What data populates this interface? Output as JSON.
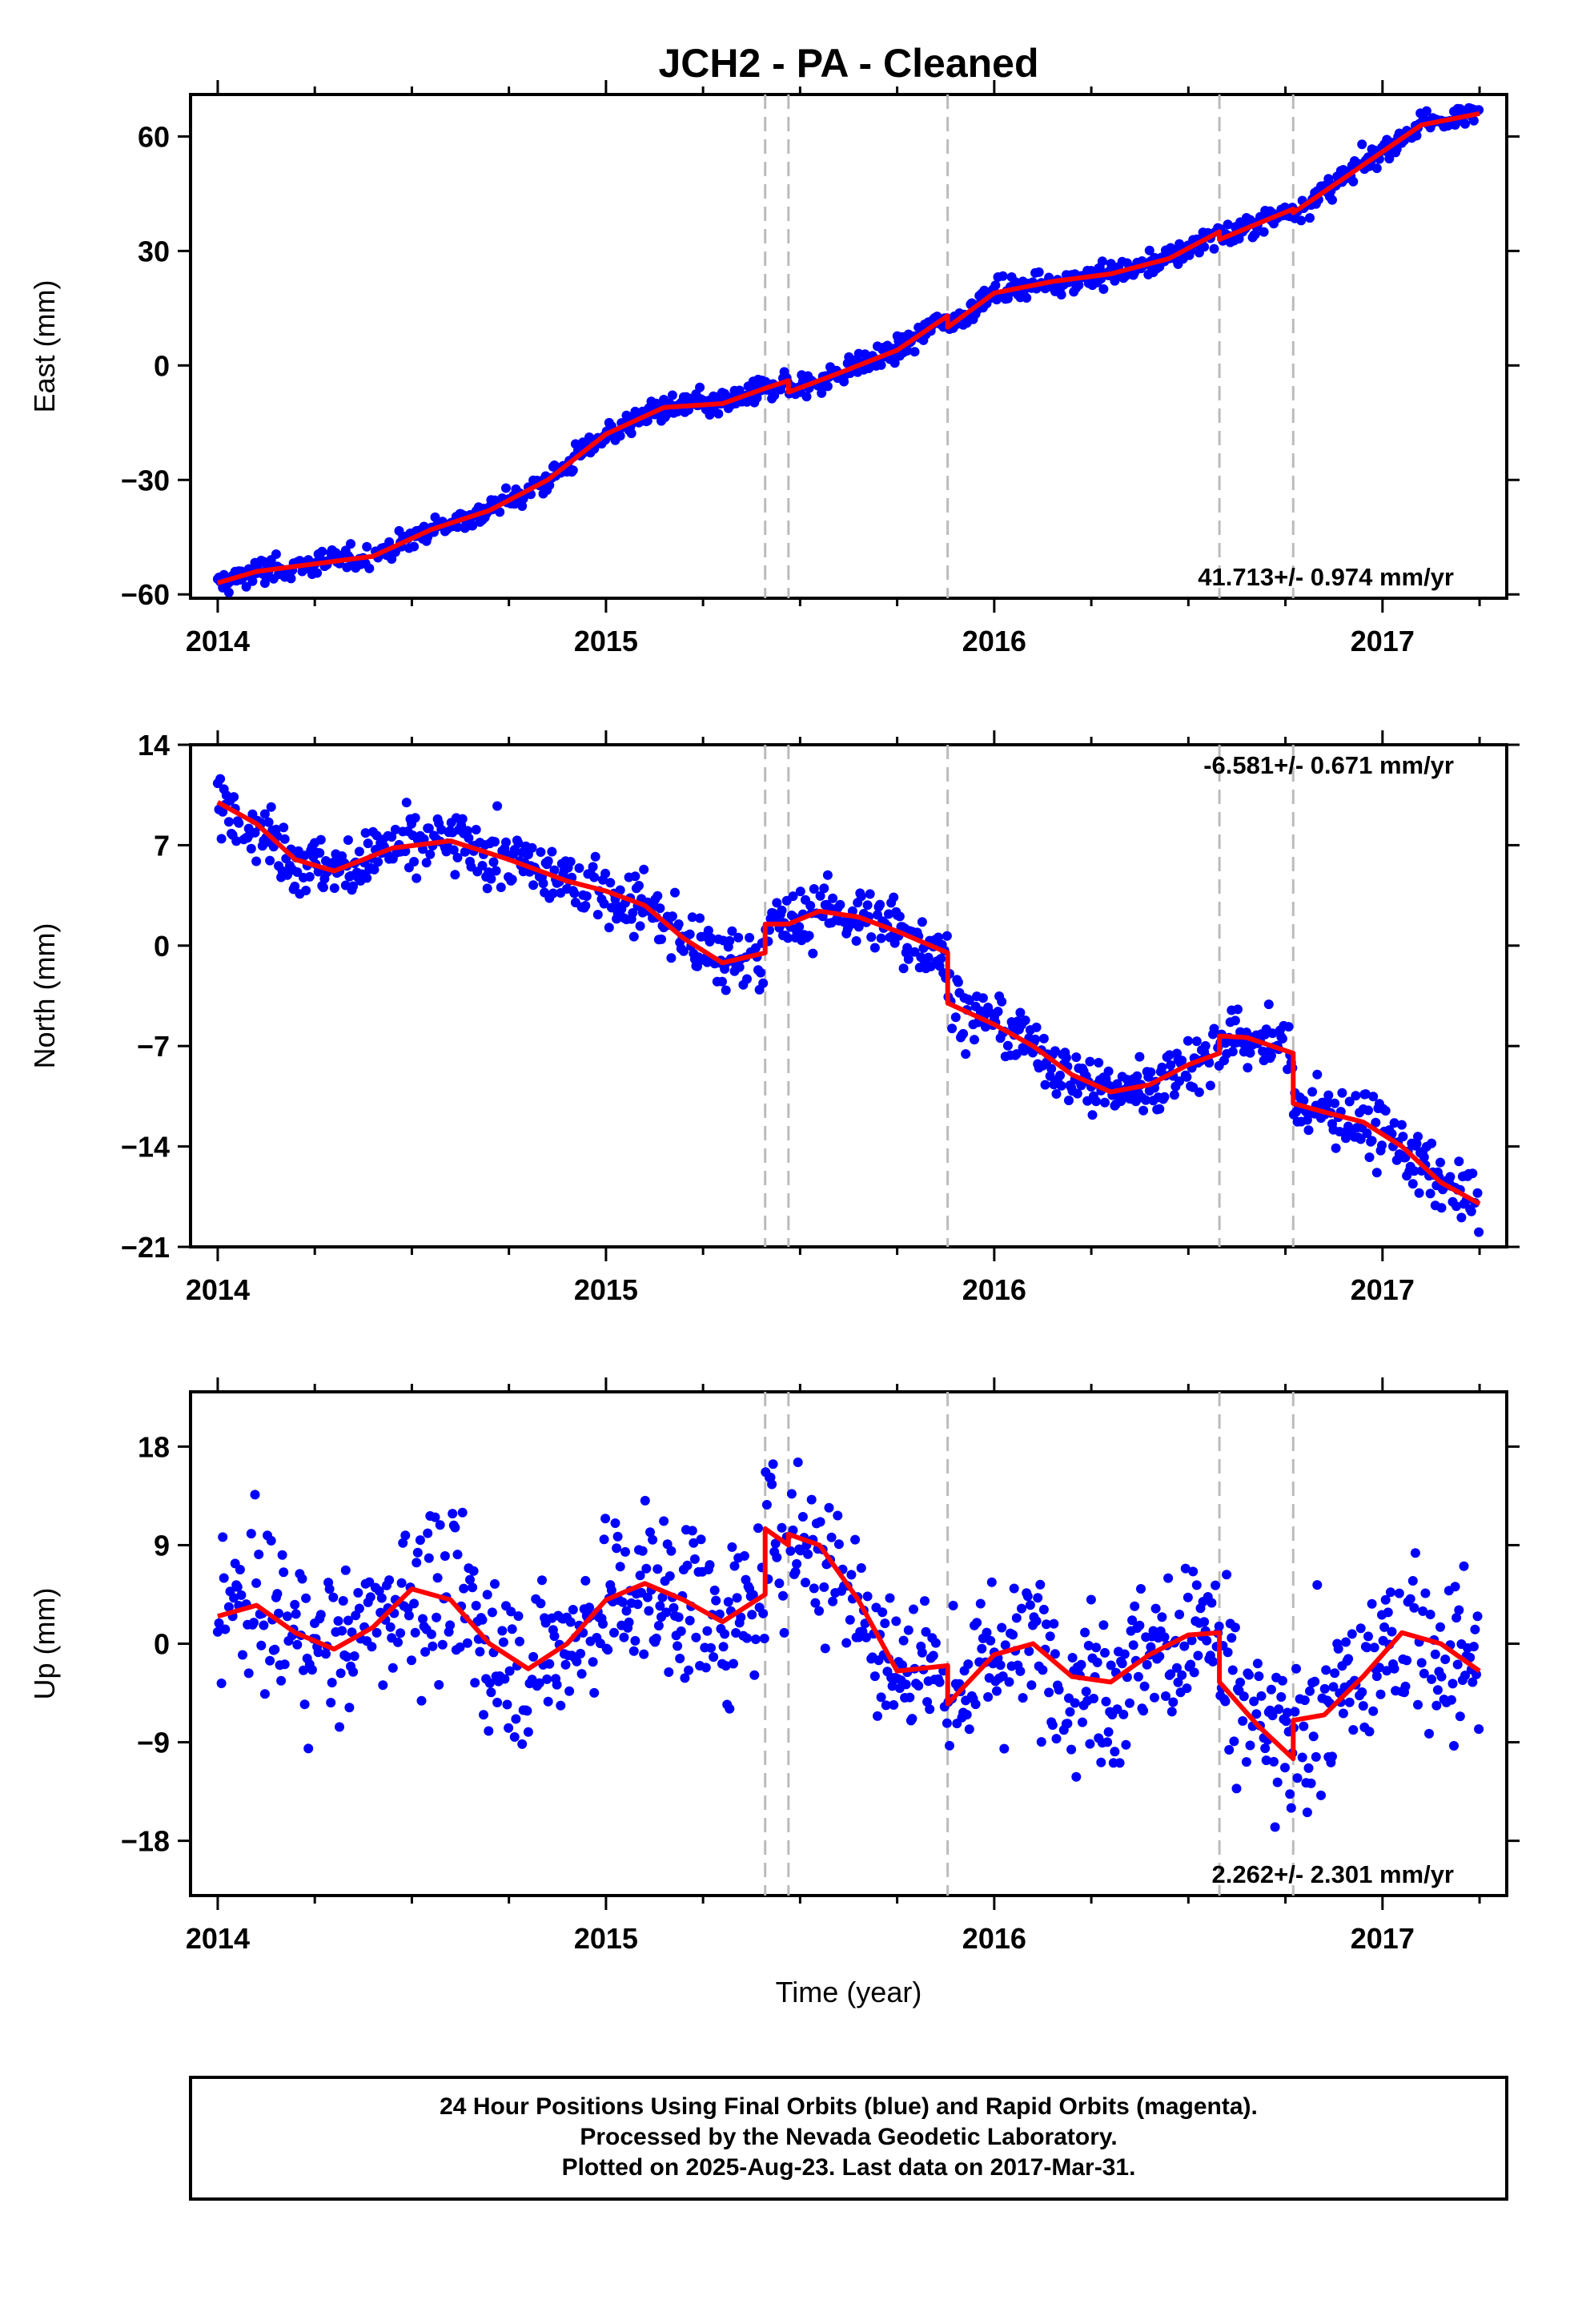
{
  "title": "JCH2  - PA - Cleaned",
  "footer": {
    "lines": [
      "24 Hour Positions Using Final Orbits (blue) and Rapid Orbits (magenta).",
      "Processed by the Nevada Geodetic Laboratory.",
      "Plotted on 2025-Aug-23. Last data on 2017-Mar-31."
    ]
  },
  "colors": {
    "points": "#0000ff",
    "model": "#ff0000",
    "steps": "#bbbbbb"
  },
  "chart_data": [
    {
      "type": "scatter",
      "component": "East",
      "ylabel": "East (mm)",
      "xlabel": "",
      "xlim": [
        2013.93,
        2017.32
      ],
      "ylim": [
        -61,
        71
      ],
      "xticks": [
        "2014",
        "2015",
        "2016",
        "2017"
      ],
      "yticks": [
        -60,
        -30,
        0,
        30,
        60
      ],
      "rate_label": "41.713+/- 0.974 mm/yr",
      "rate_position": "bottom-right",
      "steps": [
        2015.41,
        2015.47,
        2015.88,
        2016.58,
        2016.77
      ],
      "trend": [
        [
          2014.0,
          -57
        ],
        [
          2014.1,
          -54
        ],
        [
          2014.25,
          -52
        ],
        [
          2014.4,
          -50
        ],
        [
          2014.55,
          -43
        ],
        [
          2014.7,
          -38
        ],
        [
          2014.85,
          -30
        ],
        [
          2015.0,
          -18
        ],
        [
          2015.15,
          -11
        ],
        [
          2015.3,
          -10
        ],
        [
          2015.41,
          -6
        ],
        [
          2015.47,
          -4
        ],
        [
          2015.47,
          -7
        ],
        [
          2015.6,
          -2
        ],
        [
          2015.75,
          4
        ],
        [
          2015.88,
          13
        ],
        [
          2015.88,
          10
        ],
        [
          2016.0,
          19
        ],
        [
          2016.15,
          22
        ],
        [
          2016.3,
          24
        ],
        [
          2016.45,
          28
        ],
        [
          2016.58,
          35
        ],
        [
          2016.58,
          33
        ],
        [
          2016.77,
          41
        ],
        [
          2016.77,
          40
        ],
        [
          2016.9,
          49
        ],
        [
          2017.0,
          56
        ],
        [
          2017.1,
          63
        ],
        [
          2017.25,
          66
        ]
      ]
    },
    {
      "type": "scatter",
      "component": "North",
      "ylabel": "North (mm)",
      "xlabel": "",
      "xlim": [
        2013.93,
        2017.32
      ],
      "ylim": [
        -21,
        14
      ],
      "xticks": [
        "2014",
        "2015",
        "2016",
        "2017"
      ],
      "yticks": [
        -21,
        -14,
        -7,
        0,
        7,
        14
      ],
      "rate_label": "-6.581+/- 0.671 mm/yr",
      "rate_position": "top-right",
      "steps": [
        2015.41,
        2015.47,
        2015.88,
        2016.58,
        2016.77
      ],
      "trend": [
        [
          2014.0,
          10
        ],
        [
          2014.1,
          8.5
        ],
        [
          2014.2,
          6
        ],
        [
          2014.3,
          5.2
        ],
        [
          2014.45,
          6.8
        ],
        [
          2014.6,
          7.3
        ],
        [
          2014.75,
          6
        ],
        [
          2014.9,
          4.5
        ],
        [
          2015.0,
          3.8
        ],
        [
          2015.1,
          2.8
        ],
        [
          2015.2,
          0.5
        ],
        [
          2015.3,
          -1.2
        ],
        [
          2015.41,
          -0.5
        ],
        [
          2015.41,
          1.5
        ],
        [
          2015.47,
          1.5
        ],
        [
          2015.55,
          2.4
        ],
        [
          2015.65,
          2.0
        ],
        [
          2015.75,
          1.0
        ],
        [
          2015.88,
          -0.5
        ],
        [
          2015.88,
          -4.0
        ],
        [
          2016.0,
          -5.5
        ],
        [
          2016.1,
          -7
        ],
        [
          2016.2,
          -9
        ],
        [
          2016.3,
          -10.2
        ],
        [
          2016.4,
          -9.7
        ],
        [
          2016.5,
          -8.3
        ],
        [
          2016.58,
          -7.5
        ],
        [
          2016.58,
          -6.3
        ],
        [
          2016.65,
          -6.4
        ],
        [
          2016.77,
          -7.5
        ],
        [
          2016.77,
          -11
        ],
        [
          2016.85,
          -11.6
        ],
        [
          2016.95,
          -12.3
        ],
        [
          2017.05,
          -14
        ],
        [
          2017.15,
          -16.5
        ],
        [
          2017.25,
          -18
        ]
      ]
    },
    {
      "type": "scatter",
      "component": "Up",
      "ylabel": "Up (mm)",
      "xlabel": "Time (year)",
      "xlim": [
        2013.93,
        2017.32
      ],
      "ylim": [
        -23,
        23
      ],
      "xticks": [
        "2014",
        "2015",
        "2016",
        "2017"
      ],
      "yticks": [
        -18,
        -9,
        0,
        9,
        18
      ],
      "rate_label": "2.262+/- 2.301 mm/yr",
      "rate_position": "bottom-right",
      "steps": [
        2015.41,
        2015.47,
        2015.88,
        2016.58,
        2016.77
      ],
      "trend": [
        [
          2014.0,
          2.5
        ],
        [
          2014.1,
          3.5
        ],
        [
          2014.2,
          1
        ],
        [
          2014.3,
          -0.5
        ],
        [
          2014.4,
          1.5
        ],
        [
          2014.5,
          5
        ],
        [
          2014.6,
          4
        ],
        [
          2014.7,
          0
        ],
        [
          2014.8,
          -2.3
        ],
        [
          2014.9,
          0
        ],
        [
          2015.0,
          4
        ],
        [
          2015.1,
          5.5
        ],
        [
          2015.2,
          4
        ],
        [
          2015.3,
          2
        ],
        [
          2015.41,
          4.5
        ],
        [
          2015.41,
          10.5
        ],
        [
          2015.47,
          9
        ],
        [
          2015.47,
          10
        ],
        [
          2015.55,
          9
        ],
        [
          2015.65,
          4
        ],
        [
          2015.75,
          -2.5
        ],
        [
          2015.88,
          -2
        ],
        [
          2015.88,
          -5.5
        ],
        [
          2016.0,
          -1
        ],
        [
          2016.1,
          0
        ],
        [
          2016.2,
          -3
        ],
        [
          2016.3,
          -3.5
        ],
        [
          2016.4,
          -1
        ],
        [
          2016.5,
          0.8
        ],
        [
          2016.58,
          1
        ],
        [
          2016.58,
          -3.5
        ],
        [
          2016.68,
          -7.5
        ],
        [
          2016.77,
          -10.5
        ],
        [
          2016.77,
          -7
        ],
        [
          2016.85,
          -6.5
        ],
        [
          2016.95,
          -3
        ],
        [
          2017.05,
          1
        ],
        [
          2017.15,
          0
        ],
        [
          2017.25,
          -2.5
        ]
      ],
      "annual_amplitude": 3.5
    }
  ]
}
